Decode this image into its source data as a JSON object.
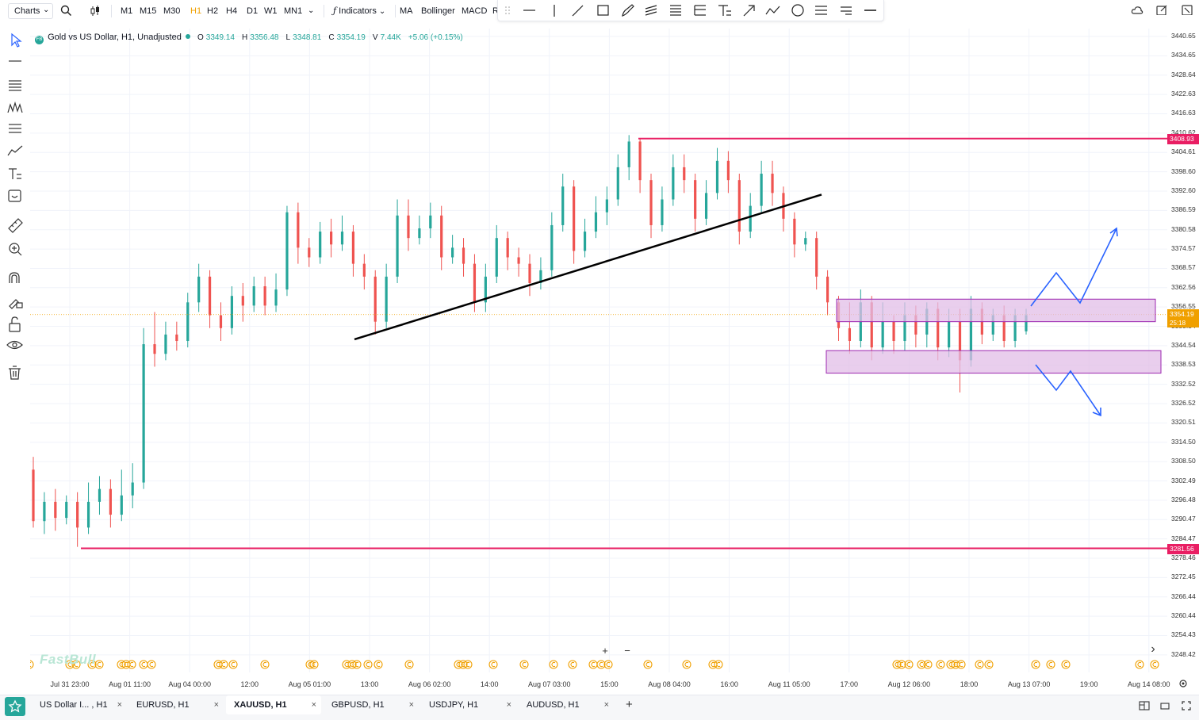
{
  "topbar": {
    "charts_label": "Charts",
    "timeframes": [
      "M1",
      "M15",
      "M30",
      "H1",
      "H2",
      "H4",
      "D1",
      "W1",
      "MN1"
    ],
    "active_timeframe": "H1",
    "indicators_label": "Indicators",
    "studies": [
      "MA",
      "Bollinger",
      "MACD"
    ],
    "truncated_study": "R"
  },
  "legend": {
    "logo_text": "FB",
    "symbol": "Gold vs US Dollar, H1, Unadjusted",
    "open_label": "O",
    "open": "3349.14",
    "high_label": "H",
    "high": "3356.48",
    "low_label": "L",
    "low": "3348.81",
    "close_label": "C",
    "close": "3354.19",
    "volume_label": "V",
    "volume": "7.44K",
    "change": "+5.06 (+0.15%)"
  },
  "colors": {
    "up": "#26a69a",
    "down": "#ef5350",
    "level_line": "#e91e63",
    "zone_fill": "#e1bee7",
    "zone_border": "#9c27b0",
    "arrow": "#2962ff",
    "trendline": "#000000",
    "event_icon": "#f0a000"
  },
  "price_axis": {
    "ticks": [
      "3440.65",
      "3434.65",
      "3428.64",
      "3422.63",
      "3416.63",
      "3410.62",
      "3404.61",
      "3398.60",
      "3392.60",
      "3386.59",
      "3380.58",
      "3374.57",
      "3368.57",
      "3362.56",
      "3356.55",
      "3350.54",
      "3344.54",
      "3338.53",
      "3332.52",
      "3326.52",
      "3320.51",
      "3314.50",
      "3308.50",
      "3302.49",
      "3296.48",
      "3290.47",
      "3284.47",
      "3278.46",
      "3272.45",
      "3266.44",
      "3260.44",
      "3254.43",
      "3248.42"
    ],
    "resistance_tag": "3408.93",
    "support_tag": "3281.56",
    "current_price_tag": "3354.19",
    "countdown_tag": "25:18"
  },
  "time_axis": {
    "ticks": [
      "Jul 31 23:00",
      "Aug 01 11:00",
      "Aug 04 00:00",
      "12:00",
      "Aug 05 01:00",
      "13:00",
      "Aug 06 02:00",
      "14:00",
      "Aug 07 03:00",
      "15:00",
      "Aug 08 04:00",
      "16:00",
      "Aug 11 05:00",
      "17:00",
      "Aug 12 06:00",
      "18:00",
      "Aug 13 07:00",
      "19:00",
      "Aug 14 08:00"
    ]
  },
  "chart_data": {
    "type": "candlestick",
    "symbol": "Gold vs US Dollar",
    "timeframe": "H1",
    "ylim": [
      3244,
      3446
    ],
    "candles_approx": [
      [
        3306,
        3290,
        3310,
        3288
      ],
      [
        3290,
        3296,
        3299,
        3286
      ],
      [
        3296,
        3291,
        3300,
        3287
      ],
      [
        3291,
        3296,
        3298,
        3289
      ],
      [
        3296,
        3288,
        3299,
        3282
      ],
      [
        3288,
        3296,
        3302,
        3286
      ],
      [
        3296,
        3300,
        3304,
        3292
      ],
      [
        3300,
        3292,
        3303,
        3288
      ],
      [
        3292,
        3298,
        3306,
        3290
      ],
      [
        3298,
        3302,
        3308,
        3294
      ],
      [
        3302,
        3345,
        3350,
        3300
      ],
      [
        3345,
        3342,
        3355,
        3338
      ],
      [
        3342,
        3348,
        3352,
        3340
      ],
      [
        3348,
        3346,
        3352,
        3343
      ],
      [
        3346,
        3358,
        3361,
        3344
      ],
      [
        3358,
        3366,
        3370,
        3355
      ],
      [
        3366,
        3354,
        3368,
        3350
      ],
      [
        3354,
        3350,
        3358,
        3346
      ],
      [
        3350,
        3360,
        3363,
        3348
      ],
      [
        3360,
        3357,
        3364,
        3352
      ],
      [
        3357,
        3363,
        3366,
        3355
      ],
      [
        3363,
        3357,
        3366,
        3354
      ],
      [
        3357,
        3362,
        3367,
        3355
      ],
      [
        3362,
        3386,
        3388,
        3360
      ],
      [
        3386,
        3375,
        3389,
        3370
      ],
      [
        3375,
        3372,
        3378,
        3369
      ],
      [
        3372,
        3380,
        3383,
        3370
      ],
      [
        3380,
        3376,
        3384,
        3372
      ],
      [
        3376,
        3380,
        3385,
        3374
      ],
      [
        3380,
        3370,
        3382,
        3366
      ],
      [
        3370,
        3366,
        3373,
        3362
      ],
      [
        3366,
        3352,
        3368,
        3348
      ],
      [
        3352,
        3366,
        3370,
        3350
      ],
      [
        3366,
        3385,
        3390,
        3364
      ],
      [
        3385,
        3378,
        3390,
        3374
      ],
      [
        3378,
        3381,
        3385,
        3376
      ],
      [
        3381,
        3385,
        3389,
        3378
      ],
      [
        3385,
        3372,
        3388,
        3368
      ],
      [
        3372,
        3375,
        3379,
        3370
      ],
      [
        3375,
        3370,
        3378,
        3366
      ],
      [
        3370,
        3358,
        3373,
        3355
      ],
      [
        3358,
        3366,
        3370,
        3355
      ],
      [
        3366,
        3378,
        3382,
        3364
      ],
      [
        3378,
        3372,
        3380,
        3368
      ],
      [
        3372,
        3370,
        3375,
        3366
      ],
      [
        3370,
        3364,
        3373,
        3360
      ],
      [
        3364,
        3368,
        3372,
        3362
      ],
      [
        3368,
        3382,
        3386,
        3366
      ],
      [
        3382,
        3394,
        3398,
        3380
      ],
      [
        3394,
        3374,
        3396,
        3370
      ],
      [
        3374,
        3380,
        3384,
        3372
      ],
      [
        3380,
        3386,
        3391,
        3378
      ],
      [
        3386,
        3390,
        3394,
        3382
      ],
      [
        3390,
        3400,
        3404,
        3388
      ],
      [
        3400,
        3408,
        3410,
        3396
      ],
      [
        3408,
        3396,
        3409,
        3392
      ],
      [
        3396,
        3382,
        3398,
        3378
      ],
      [
        3382,
        3390,
        3394,
        3380
      ],
      [
        3390,
        3400,
        3404,
        3388
      ],
      [
        3400,
        3396,
        3404,
        3392
      ],
      [
        3396,
        3384,
        3398,
        3380
      ],
      [
        3384,
        3392,
        3396,
        3382
      ],
      [
        3392,
        3402,
        3406,
        3390
      ],
      [
        3402,
        3396,
        3405,
        3392
      ],
      [
        3396,
        3380,
        3398,
        3376
      ],
      [
        3380,
        3388,
        3392,
        3378
      ],
      [
        3388,
        3398,
        3402,
        3386
      ],
      [
        3398,
        3392,
        3402,
        3388
      ],
      [
        3392,
        3384,
        3394,
        3380
      ],
      [
        3384,
        3376,
        3386,
        3372
      ],
      [
        3376,
        3378,
        3380,
        3374
      ],
      [
        3378,
        3366,
        3380,
        3362
      ],
      [
        3366,
        3358,
        3368,
        3354
      ],
      [
        3358,
        3350,
        3360,
        3346
      ],
      [
        3350,
        3346,
        3358,
        3342
      ],
      [
        3346,
        3358,
        3362,
        3344
      ],
      [
        3358,
        3344,
        3360,
        3340
      ],
      [
        3344,
        3352,
        3358,
        3342
      ],
      [
        3352,
        3346,
        3354,
        3342
      ],
      [
        3346,
        3354,
        3358,
        3343
      ],
      [
        3354,
        3348,
        3357,
        3344
      ],
      [
        3348,
        3356,
        3358,
        3344
      ],
      [
        3356,
        3344,
        3358,
        3340
      ],
      [
        3344,
        3352,
        3356,
        3341
      ],
      [
        3352,
        3340,
        3356,
        3330
      ],
      [
        3340,
        3356,
        3360,
        3338
      ],
      [
        3356,
        3348,
        3358,
        3345
      ],
      [
        3348,
        3354,
        3356,
        3346
      ],
      [
        3354,
        3346,
        3357,
        3344
      ],
      [
        3346,
        3354,
        3356,
        3344
      ],
      [
        3349,
        3354,
        3356,
        3348
      ]
    ],
    "horizontal_levels": [
      3408.93,
      3281.56
    ],
    "current_price": 3354.19,
    "zones": [
      [
        3352,
        3357
      ],
      [
        3338,
        3343
      ]
    ]
  },
  "bottom_tabs": [
    {
      "label": "US Dollar I... , H1"
    },
    {
      "label": "EURUSD, H1"
    },
    {
      "label": "XAUUSD, H1"
    },
    {
      "label": "GBPUSD, H1"
    },
    {
      "label": "USDJPY, H1"
    },
    {
      "label": "AUDUSD, H1"
    }
  ],
  "active_tab": 2,
  "watermark": "FastBull",
  "glyphs": {
    "close": "×",
    "add": "+",
    "zoom_in": "+",
    "zoom_out": "−",
    "scroll_right": "›",
    "dropdown": "⌄",
    "event": "©"
  },
  "icons": [
    "search-icon",
    "candle-type-icon",
    "cursor-icon",
    "line-icon",
    "channel-icon",
    "pattern-icon",
    "fib-icon",
    "trend-icon",
    "text-icon",
    "sticker-icon",
    "ruler-icon",
    "zoom-icon",
    "magnet-icon",
    "draw-lock-icon",
    "lock-icon",
    "eye-icon",
    "trash-icon",
    "cloud-icon",
    "share-icon",
    "fullscreen-icon",
    "star-icon",
    "layout-icon",
    "window-icon",
    "expand-icon",
    "settings-icon"
  ]
}
